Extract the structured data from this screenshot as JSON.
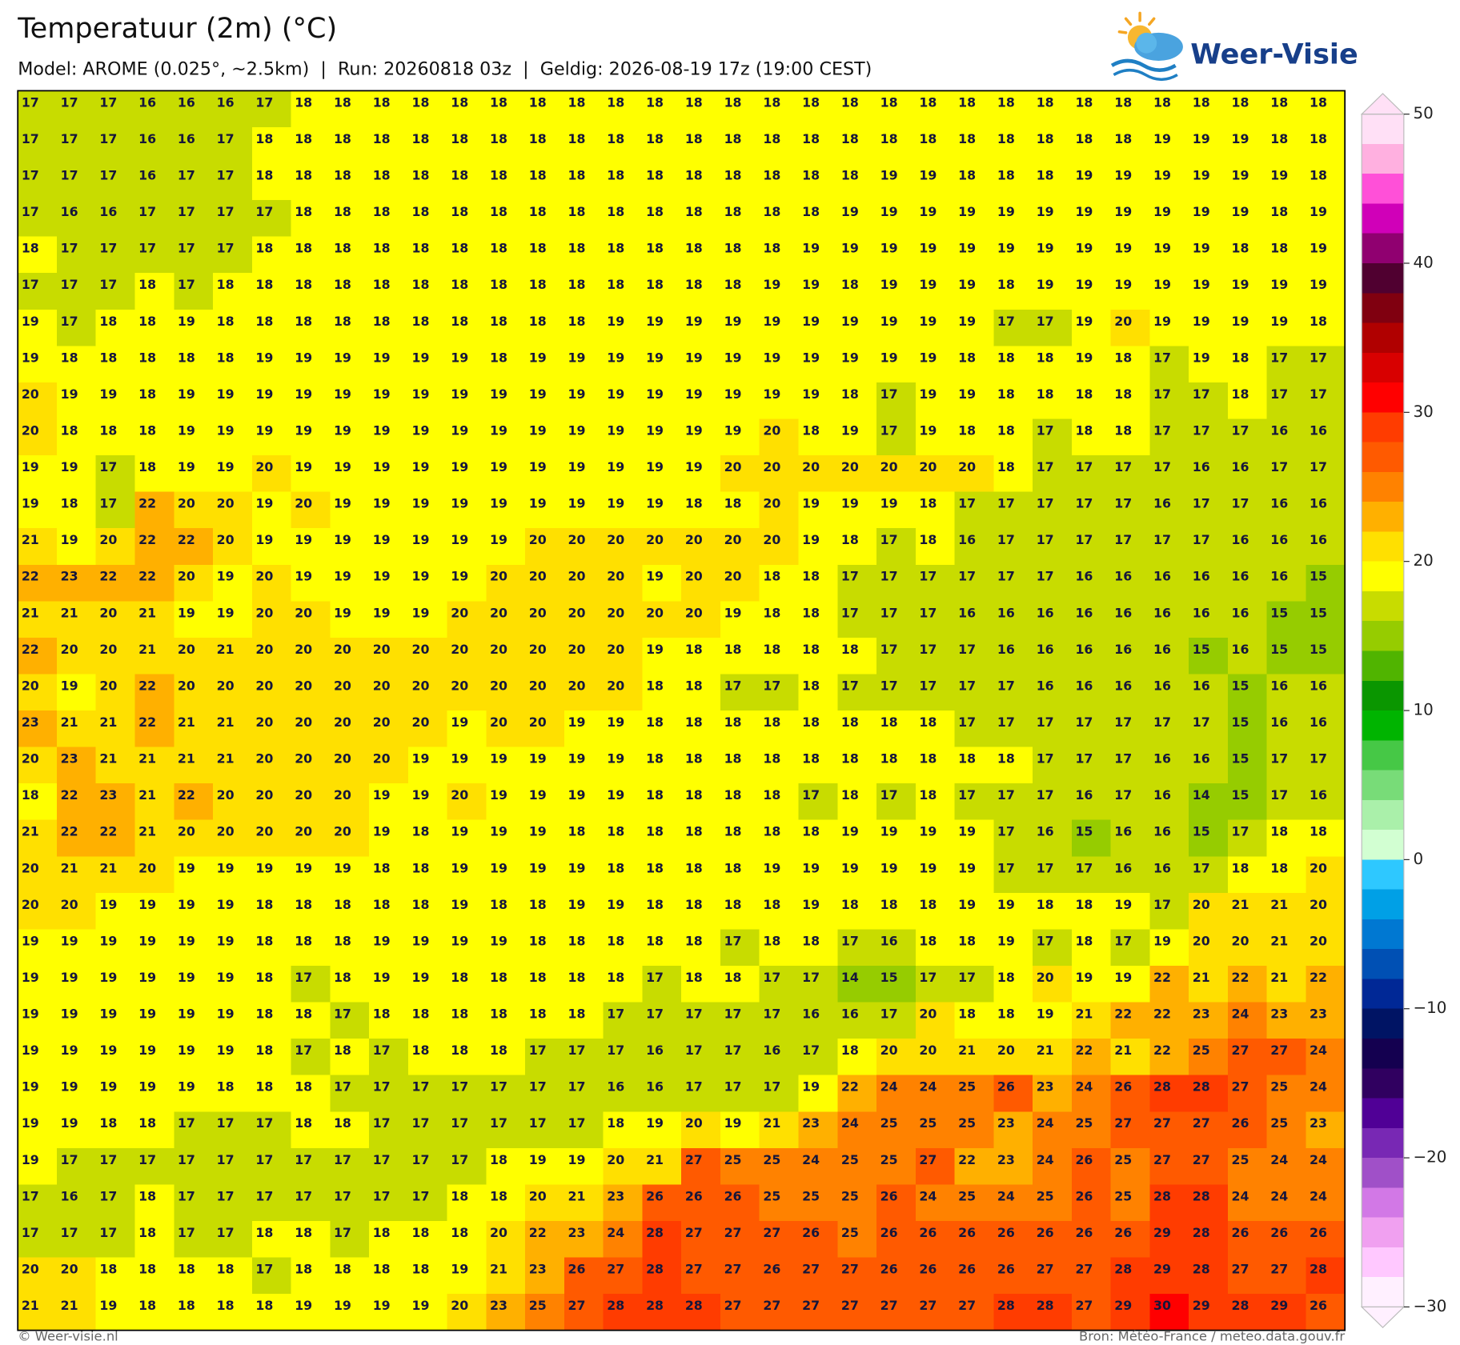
{
  "chart_data": {
    "type": "heatmap",
    "title": "Temperatuur (2m) (°C)",
    "subtitle": "Model: AROME (0.025°, ~2.5km)  |  Run: 20260818 03z  |  Geldig: 2026-08-19 17z (19:00 CEST)",
    "values": [
      [
        17,
        17,
        17,
        16,
        16,
        16,
        17,
        18,
        18,
        18,
        18,
        18,
        18,
        18,
        18,
        18,
        18,
        18,
        18,
        18,
        18,
        18,
        18,
        18,
        18,
        18,
        18,
        18,
        18,
        18,
        18,
        18,
        18,
        18
      ],
      [
        17,
        17,
        17,
        16,
        16,
        17,
        18,
        18,
        18,
        18,
        18,
        18,
        18,
        18,
        18,
        18,
        18,
        18,
        18,
        18,
        18,
        18,
        18,
        18,
        18,
        18,
        18,
        18,
        18,
        19,
        19,
        19,
        18,
        18
      ],
      [
        17,
        17,
        17,
        16,
        17,
        17,
        18,
        18,
        18,
        18,
        18,
        18,
        18,
        18,
        18,
        18,
        18,
        18,
        18,
        18,
        18,
        18,
        19,
        19,
        18,
        18,
        18,
        19,
        19,
        19,
        19,
        19,
        19,
        18
      ],
      [
        17,
        16,
        16,
        17,
        17,
        17,
        17,
        18,
        18,
        18,
        18,
        18,
        18,
        18,
        18,
        18,
        18,
        18,
        18,
        18,
        18,
        19,
        19,
        19,
        19,
        19,
        19,
        19,
        19,
        19,
        19,
        19,
        18,
        19
      ],
      [
        18,
        17,
        17,
        17,
        17,
        17,
        18,
        18,
        18,
        18,
        18,
        18,
        18,
        18,
        18,
        18,
        18,
        18,
        18,
        18,
        19,
        19,
        19,
        19,
        19,
        19,
        19,
        19,
        19,
        19,
        19,
        18,
        18,
        19
      ],
      [
        17,
        17,
        17,
        18,
        17,
        18,
        18,
        18,
        18,
        18,
        18,
        18,
        18,
        18,
        18,
        18,
        18,
        18,
        18,
        19,
        19,
        18,
        19,
        19,
        19,
        18,
        19,
        19,
        19,
        19,
        19,
        19,
        19,
        19
      ],
      [
        19,
        17,
        18,
        18,
        19,
        18,
        18,
        18,
        18,
        18,
        18,
        18,
        18,
        18,
        18,
        19,
        19,
        19,
        19,
        19,
        19,
        19,
        19,
        19,
        19,
        17,
        17,
        19,
        20,
        19,
        19,
        19,
        19,
        18
      ],
      [
        19,
        18,
        18,
        18,
        18,
        18,
        19,
        19,
        19,
        19,
        19,
        19,
        18,
        19,
        19,
        19,
        19,
        19,
        19,
        19,
        19,
        19,
        19,
        19,
        18,
        18,
        18,
        19,
        18,
        17,
        19,
        18,
        17,
        17
      ],
      [
        20,
        19,
        19,
        18,
        19,
        19,
        19,
        19,
        19,
        19,
        19,
        19,
        19,
        19,
        19,
        19,
        19,
        19,
        19,
        19,
        19,
        18,
        17,
        19,
        19,
        18,
        18,
        18,
        18,
        17,
        17,
        18,
        17,
        17
      ],
      [
        20,
        18,
        18,
        18,
        19,
        19,
        19,
        19,
        19,
        19,
        19,
        19,
        19,
        19,
        19,
        19,
        19,
        19,
        19,
        20,
        18,
        19,
        17,
        19,
        18,
        18,
        17,
        18,
        18,
        17,
        17,
        17,
        16,
        16
      ],
      [
        19,
        19,
        17,
        18,
        19,
        19,
        20,
        19,
        19,
        19,
        19,
        19,
        19,
        19,
        19,
        19,
        19,
        19,
        20,
        20,
        20,
        20,
        20,
        20,
        20,
        18,
        17,
        17,
        17,
        17,
        16,
        16,
        17,
        17
      ],
      [
        19,
        18,
        17,
        22,
        20,
        20,
        19,
        20,
        19,
        19,
        19,
        19,
        19,
        19,
        19,
        19,
        19,
        18,
        18,
        20,
        19,
        19,
        19,
        18,
        17,
        17,
        17,
        17,
        17,
        16,
        17,
        17,
        16,
        16
      ],
      [
        21,
        19,
        20,
        22,
        22,
        20,
        19,
        19,
        19,
        19,
        19,
        19,
        19,
        20,
        20,
        20,
        20,
        20,
        20,
        20,
        19,
        18,
        17,
        18,
        16,
        17,
        17,
        17,
        17,
        17,
        17,
        16,
        16,
        16
      ],
      [
        22,
        23,
        22,
        22,
        20,
        19,
        20,
        19,
        19,
        19,
        19,
        19,
        20,
        20,
        20,
        20,
        19,
        20,
        20,
        18,
        18,
        17,
        17,
        17,
        17,
        17,
        17,
        16,
        16,
        16,
        16,
        16,
        16,
        15
      ],
      [
        21,
        21,
        20,
        21,
        19,
        19,
        20,
        20,
        19,
        19,
        19,
        20,
        20,
        20,
        20,
        20,
        20,
        20,
        19,
        18,
        18,
        17,
        17,
        17,
        16,
        16,
        16,
        16,
        16,
        16,
        16,
        16,
        15,
        15
      ],
      [
        22,
        20,
        20,
        21,
        20,
        21,
        20,
        20,
        20,
        20,
        20,
        20,
        20,
        20,
        20,
        20,
        19,
        18,
        18,
        18,
        18,
        18,
        17,
        17,
        17,
        16,
        16,
        16,
        16,
        16,
        15,
        16,
        15,
        15
      ],
      [
        20,
        19,
        20,
        22,
        20,
        20,
        20,
        20,
        20,
        20,
        20,
        20,
        20,
        20,
        20,
        20,
        18,
        18,
        17,
        17,
        18,
        17,
        17,
        17,
        17,
        17,
        16,
        16,
        16,
        16,
        16,
        15,
        16,
        16
      ],
      [
        23,
        21,
        21,
        22,
        21,
        21,
        20,
        20,
        20,
        20,
        20,
        19,
        20,
        20,
        19,
        19,
        18,
        18,
        18,
        18,
        18,
        18,
        18,
        18,
        17,
        17,
        17,
        17,
        17,
        17,
        17,
        15,
        16,
        16
      ],
      [
        20,
        23,
        21,
        21,
        21,
        21,
        20,
        20,
        20,
        20,
        19,
        19,
        19,
        19,
        19,
        19,
        18,
        18,
        18,
        18,
        18,
        18,
        18,
        18,
        18,
        18,
        17,
        17,
        17,
        16,
        16,
        15,
        17,
        17
      ],
      [
        18,
        22,
        23,
        21,
        22,
        20,
        20,
        20,
        20,
        19,
        19,
        20,
        19,
        19,
        19,
        19,
        18,
        18,
        18,
        18,
        17,
        18,
        17,
        18,
        17,
        17,
        17,
        16,
        17,
        16,
        14,
        15,
        17,
        16
      ],
      [
        21,
        22,
        22,
        21,
        20,
        20,
        20,
        20,
        20,
        19,
        18,
        19,
        19,
        19,
        18,
        18,
        18,
        18,
        18,
        18,
        18,
        19,
        19,
        19,
        19,
        17,
        16,
        15,
        16,
        16,
        15,
        17,
        18,
        18
      ],
      [
        20,
        21,
        21,
        20,
        19,
        19,
        19,
        19,
        19,
        18,
        18,
        19,
        19,
        19,
        19,
        18,
        18,
        18,
        18,
        19,
        19,
        19,
        19,
        19,
        19,
        17,
        17,
        17,
        16,
        16,
        17,
        18,
        18,
        20
      ],
      [
        20,
        20,
        19,
        19,
        19,
        19,
        18,
        18,
        18,
        18,
        18,
        19,
        18,
        18,
        19,
        19,
        18,
        18,
        18,
        18,
        19,
        18,
        18,
        18,
        19,
        19,
        18,
        18,
        19,
        17,
        20,
        21,
        21,
        20
      ],
      [
        19,
        19,
        19,
        19,
        19,
        19,
        18,
        18,
        18,
        19,
        19,
        19,
        19,
        18,
        18,
        18,
        18,
        18,
        17,
        18,
        18,
        17,
        16,
        18,
        18,
        19,
        17,
        18,
        17,
        19,
        20,
        20,
        21,
        20
      ],
      [
        19,
        19,
        19,
        19,
        19,
        19,
        18,
        17,
        18,
        19,
        19,
        18,
        18,
        18,
        18,
        18,
        17,
        18,
        18,
        17,
        17,
        14,
        15,
        17,
        17,
        18,
        20,
        19,
        19,
        22,
        21,
        22,
        21,
        22
      ],
      [
        19,
        19,
        19,
        19,
        19,
        19,
        18,
        18,
        17,
        18,
        18,
        18,
        18,
        18,
        18,
        17,
        17,
        17,
        17,
        17,
        16,
        16,
        17,
        20,
        18,
        18,
        19,
        21,
        22,
        22,
        23,
        24,
        23,
        23
      ],
      [
        19,
        19,
        19,
        19,
        19,
        19,
        18,
        17,
        18,
        17,
        18,
        18,
        18,
        17,
        17,
        17,
        16,
        17,
        17,
        16,
        17,
        18,
        20,
        20,
        21,
        20,
        21,
        22,
        21,
        22,
        25,
        27,
        27,
        24
      ],
      [
        19,
        19,
        19,
        19,
        19,
        18,
        18,
        18,
        17,
        17,
        17,
        17,
        17,
        17,
        17,
        16,
        16,
        17,
        17,
        17,
        19,
        22,
        24,
        24,
        25,
        26,
        23,
        24,
        26,
        28,
        28,
        27,
        25,
        24
      ],
      [
        19,
        19,
        18,
        18,
        17,
        17,
        17,
        18,
        18,
        17,
        17,
        17,
        17,
        17,
        17,
        18,
        19,
        20,
        19,
        21,
        23,
        24,
        25,
        25,
        25,
        23,
        24,
        25,
        27,
        27,
        27,
        26,
        25,
        23
      ],
      [
        19,
        17,
        17,
        17,
        17,
        17,
        17,
        17,
        17,
        17,
        17,
        17,
        18,
        19,
        19,
        20,
        21,
        27,
        25,
        25,
        24,
        25,
        25,
        27,
        22,
        23,
        24,
        26,
        25,
        27,
        27,
        25,
        24,
        24
      ],
      [
        17,
        16,
        17,
        18,
        17,
        17,
        17,
        17,
        17,
        17,
        17,
        18,
        18,
        20,
        21,
        23,
        26,
        26,
        26,
        25,
        25,
        25,
        26,
        24,
        25,
        24,
        25,
        26,
        25,
        28,
        28,
        24,
        24,
        24
      ],
      [
        17,
        17,
        17,
        18,
        17,
        17,
        18,
        18,
        17,
        18,
        18,
        18,
        20,
        22,
        23,
        24,
        28,
        27,
        27,
        27,
        26,
        25,
        26,
        26,
        26,
        26,
        26,
        26,
        26,
        29,
        28,
        26,
        26,
        26
      ],
      [
        20,
        20,
        18,
        18,
        18,
        18,
        17,
        18,
        18,
        18,
        18,
        19,
        21,
        23,
        26,
        27,
        28,
        27,
        27,
        26,
        27,
        27,
        26,
        26,
        26,
        26,
        27,
        27,
        28,
        29,
        28,
        27,
        27,
        28
      ],
      [
        21,
        21,
        19,
        18,
        18,
        18,
        18,
        19,
        19,
        19,
        19,
        20,
        23,
        25,
        27,
        28,
        28,
        28,
        27,
        27,
        27,
        27,
        27,
        27,
        27,
        28,
        28,
        27,
        29,
        30,
        29,
        28,
        29,
        26
      ]
    ],
    "colorbar": {
      "lim": [
        -30,
        50
      ],
      "ticks": [
        50,
        40,
        30,
        20,
        10,
        0,
        {
          "value": -10,
          "label": "−10"
        },
        {
          "value": -20,
          "label": "−20"
        },
        {
          "value": -30,
          "label": "−30"
        }
      ],
      "colors": [
        "#ffe0f6",
        "#ffb0e0",
        "#ff50d8",
        "#d000b8",
        "#900070",
        "#500030",
        "#800010",
        "#b00000",
        "#d80000",
        "#ff0000",
        "#ff3c00",
        "#ff5a00",
        "#ff8200",
        "#ffb000",
        "#ffe000",
        "#ffff00",
        "#c8dc00",
        "#96cc00",
        "#50b400",
        "#0a9600",
        "#00b400",
        "#46c846",
        "#78dc78",
        "#aaf0aa",
        "#d2ffd2",
        "#2ec8ff",
        "#00a0e6",
        "#0078d2",
        "#0050b4",
        "#002896",
        "#001464",
        "#140050",
        "#300060",
        "#500096",
        "#7828b4",
        "#a050c8",
        "#d278e6",
        "#f0a0f0",
        "#ffc8ff",
        "#fff0ff"
      ]
    }
  },
  "logo": "Weer-Visie",
  "footer": {
    "left": "© Weer-visie.nl",
    "right": "Bron: Météo-France / meteo.data.gouv.fr"
  }
}
